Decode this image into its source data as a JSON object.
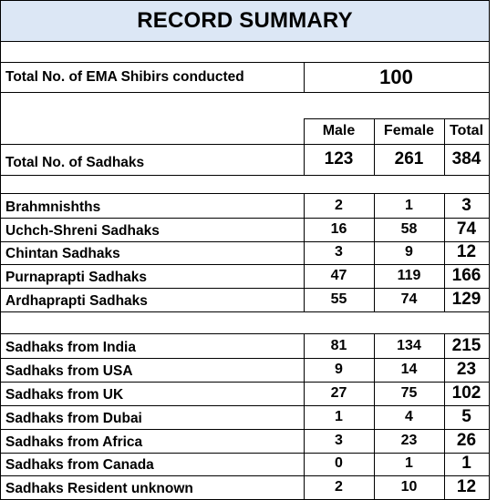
{
  "title": "RECORD SUMMARY",
  "shibirs": {
    "label": "Total No. of EMA Shibirs conducted",
    "value": "100"
  },
  "columns": {
    "male": "Male",
    "female": "Female",
    "total": "Total"
  },
  "total_sadhaks": {
    "label": "Total No. of Sadhaks",
    "male": "123",
    "female": "261",
    "total": "384"
  },
  "levels": [
    {
      "label": "Brahmnishths",
      "male": "2",
      "female": "1",
      "total": "3"
    },
    {
      "label": "Uchch-Shreni Sadhaks",
      "male": "16",
      "female": "58",
      "total": "74"
    },
    {
      "label": "Chintan Sadhaks",
      "male": "3",
      "female": "9",
      "total": "12"
    },
    {
      "label": "Purnaprapti Sadhaks",
      "male": "47",
      "female": "119",
      "total": "166"
    },
    {
      "label": "Ardhaprapti Sadhaks",
      "male": "55",
      "female": "74",
      "total": "129"
    }
  ],
  "regions": [
    {
      "label": "Sadhaks from India",
      "male": "81",
      "female": "134",
      "total": "215"
    },
    {
      "label": "Sadhaks from USA",
      "male": "9",
      "female": "14",
      "total": "23"
    },
    {
      "label": "Sadhaks from UK",
      "male": "27",
      "female": "75",
      "total": "102"
    },
    {
      "label": "Sadhaks from Dubai",
      "male": "1",
      "female": "4",
      "total": "5"
    },
    {
      "label": "Sadhaks from Africa",
      "male": "3",
      "female": "23",
      "total": "26"
    },
    {
      "label": "Sadhaks from Canada",
      "male": "0",
      "female": "1",
      "total": "1"
    },
    {
      "label": "Sadhaks Resident unknown",
      "male": "2",
      "female": "10",
      "total": "12"
    }
  ]
}
